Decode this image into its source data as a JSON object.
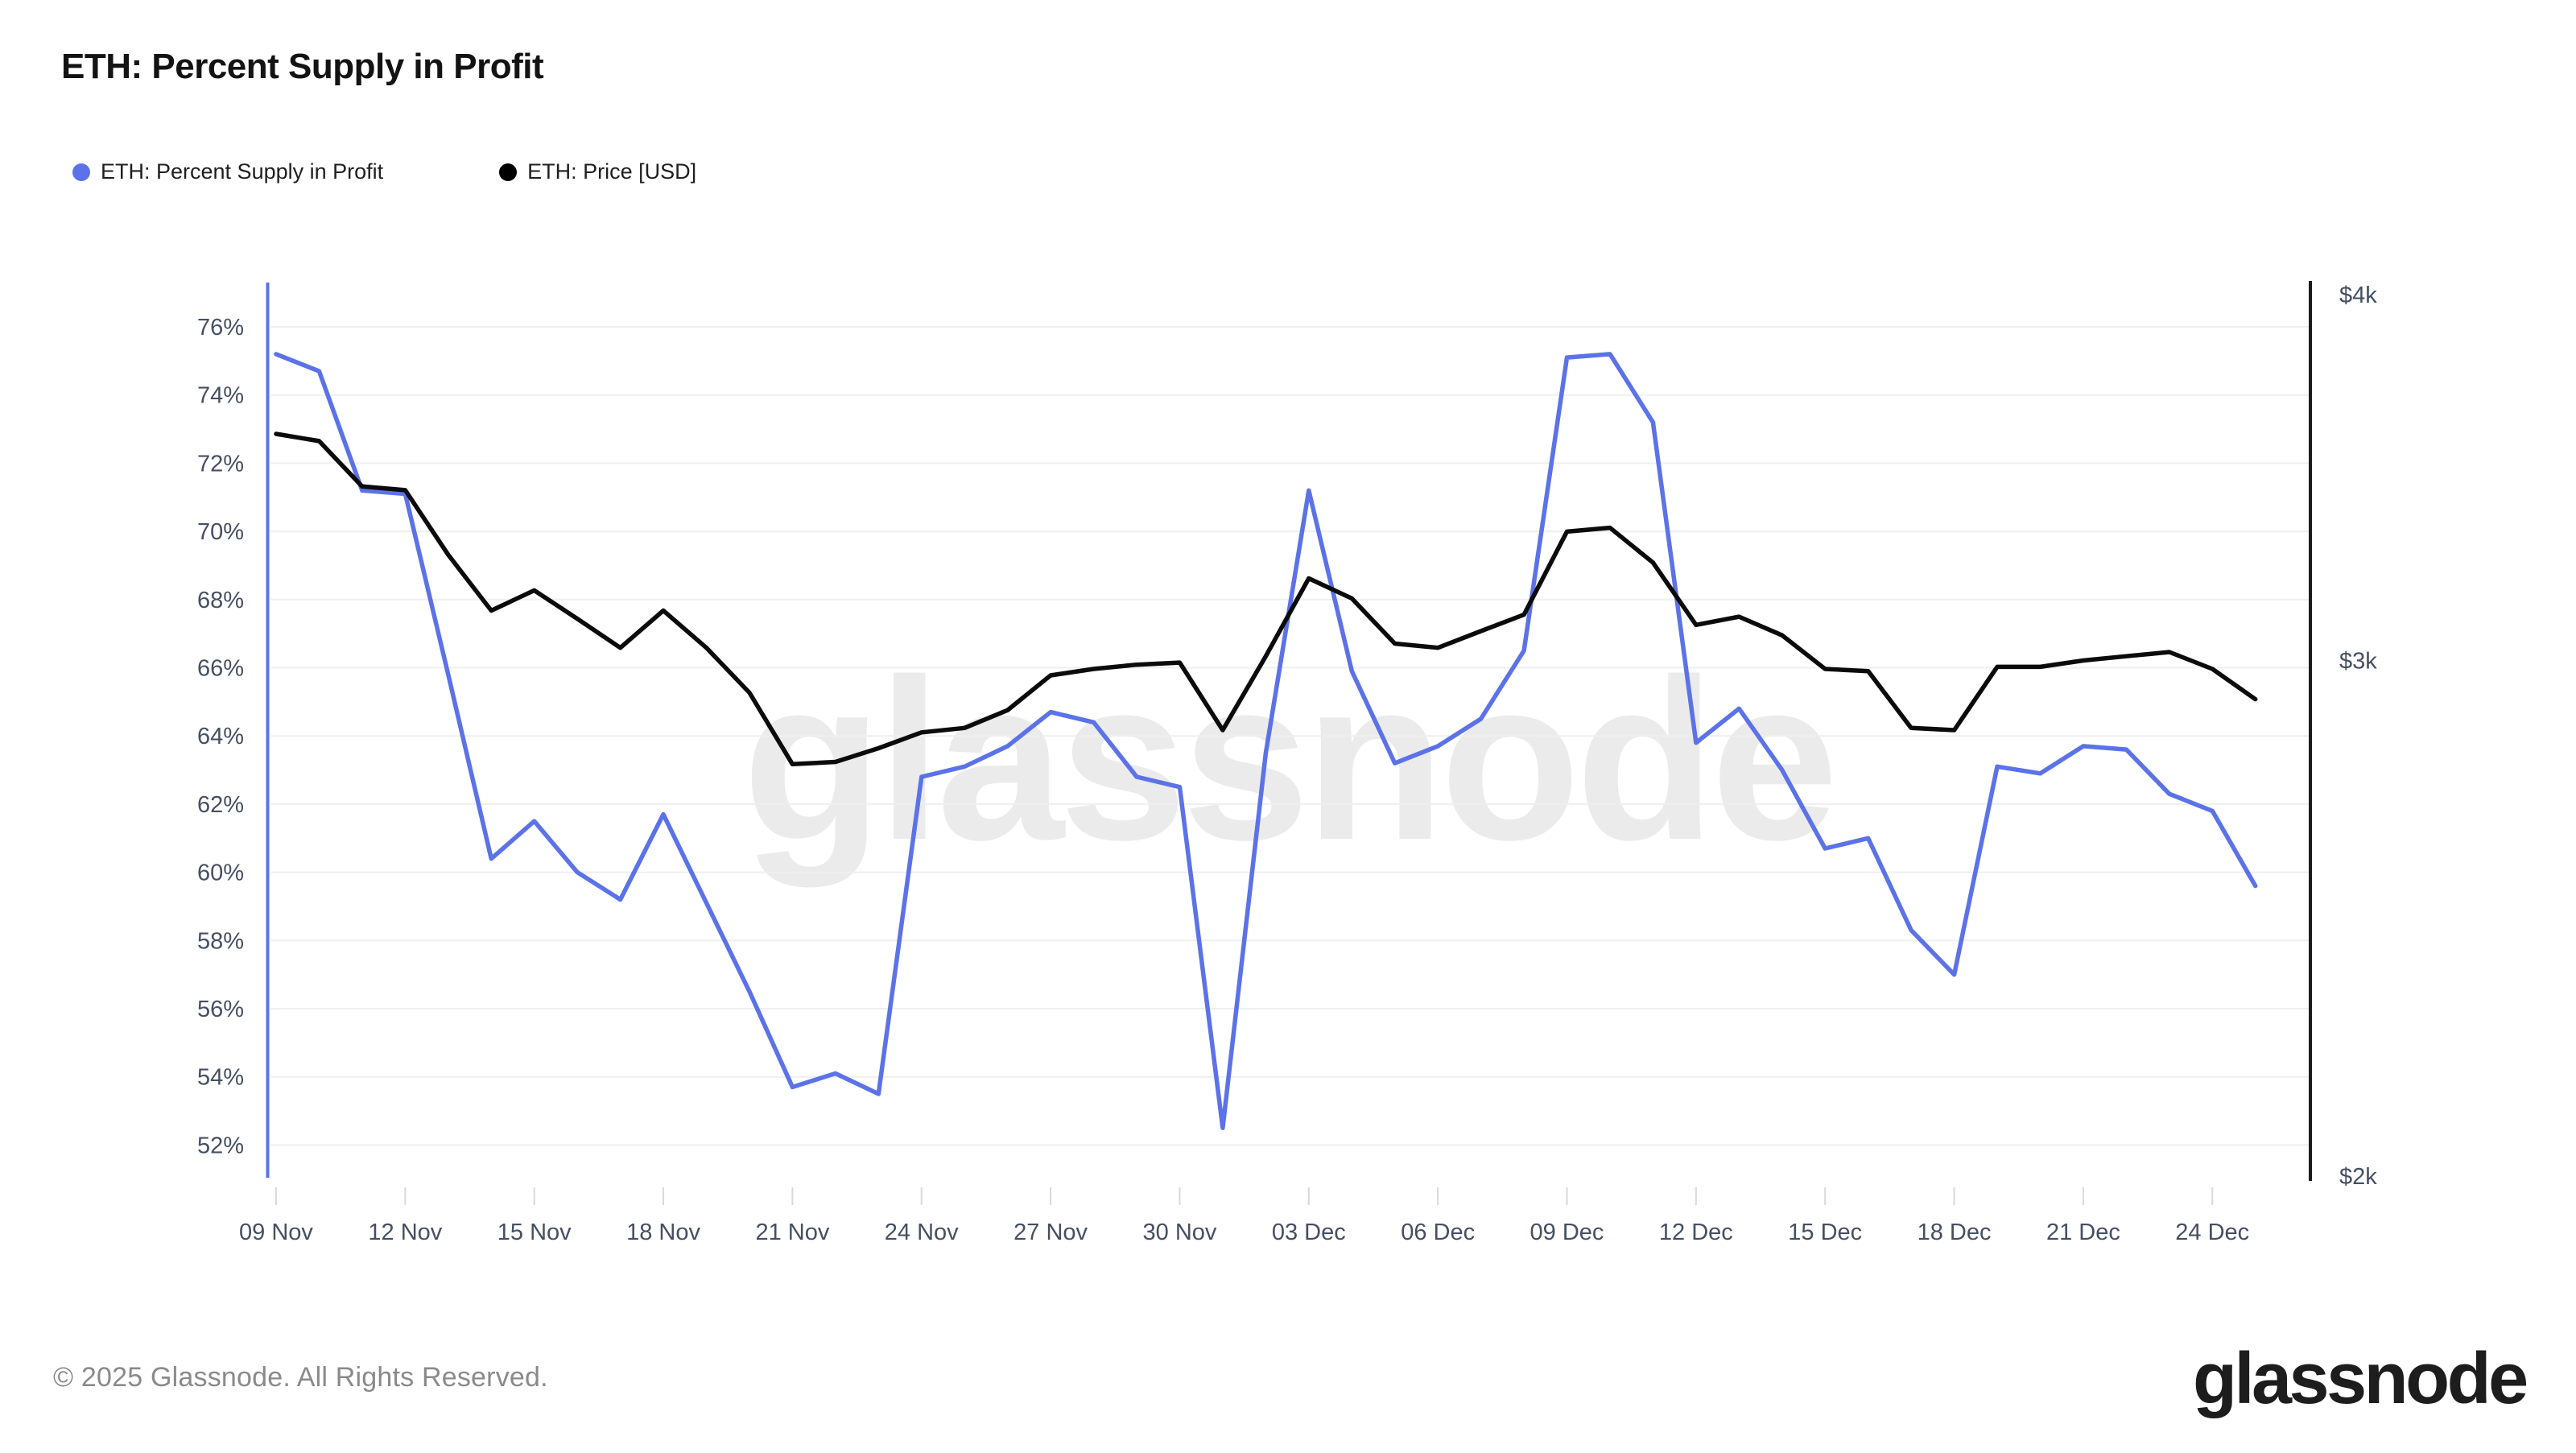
{
  "header": {
    "title": "ETH: Percent Supply in Profit"
  },
  "legend": [
    {
      "label": "ETH: Percent Supply in Profit",
      "color": "#5B72E8"
    },
    {
      "label": "ETH: Price [USD]",
      "color": "#000000"
    }
  ],
  "watermark": "glassnode",
  "footer": {
    "copyright": "© 2025 Glassnode. All Rights Reserved."
  },
  "logo_text": "glassnode",
  "style": {
    "accent_blue": "#5B72E8",
    "price_black": "#0b0b0b",
    "grid_color": "#efefef",
    "tick_text_color": "#454f63",
    "tick_mark_color": "#d9d9d9",
    "watermark_color": "#ebebeb"
  },
  "chart_data": {
    "type": "line",
    "title": "ETH: Percent Supply in Profit",
    "x": [
      "09 Nov",
      "10 Nov",
      "11 Nov",
      "12 Nov",
      "13 Nov",
      "14 Nov",
      "15 Nov",
      "16 Nov",
      "17 Nov",
      "18 Nov",
      "19 Nov",
      "20 Nov",
      "21 Nov",
      "22 Nov",
      "23 Nov",
      "24 Nov",
      "25 Nov",
      "26 Nov",
      "27 Nov",
      "28 Nov",
      "29 Nov",
      "30 Nov",
      "01 Dec",
      "02 Dec",
      "03 Dec",
      "04 Dec",
      "05 Dec",
      "06 Dec",
      "07 Dec",
      "08 Dec",
      "09 Dec",
      "10 Dec",
      "11 Dec",
      "12 Dec",
      "13 Dec",
      "14 Dec",
      "15 Dec",
      "16 Dec",
      "17 Dec",
      "18 Dec",
      "19 Dec",
      "20 Dec",
      "21 Dec",
      "22 Dec",
      "23 Dec",
      "24 Dec",
      "25 Dec"
    ],
    "xtick_labels": [
      "09 Nov",
      "12 Nov",
      "15 Nov",
      "18 Nov",
      "21 Nov",
      "24 Nov",
      "27 Nov",
      "30 Nov",
      "03 Dec",
      "06 Dec",
      "09 Dec",
      "12 Dec",
      "15 Dec",
      "18 Dec",
      "21 Dec",
      "24 Dec"
    ],
    "xtick_every_days": 3,
    "series": [
      {
        "name": "ETH: Percent Supply in Profit",
        "axis": "left",
        "unit": "%",
        "color": "#5B72E8",
        "values": [
          75.2,
          74.7,
          71.2,
          71.1,
          65.8,
          60.4,
          61.5,
          60.0,
          59.2,
          61.7,
          59.1,
          56.5,
          53.7,
          54.1,
          53.5,
          62.8,
          63.1,
          63.7,
          64.7,
          64.4,
          62.8,
          62.5,
          52.5,
          63.5,
          71.2,
          65.9,
          63.2,
          63.7,
          64.5,
          66.5,
          75.1,
          75.2,
          73.2,
          63.8,
          64.8,
          63.0,
          60.7,
          61.0,
          58.3,
          57.0,
          63.1,
          62.9,
          63.7,
          63.6,
          62.3,
          61.8,
          59.6
        ]
      },
      {
        "name": "ETH: Price [USD]",
        "axis": "right",
        "unit": "USD",
        "color": "#0b0b0b",
        "values": [
          3585,
          3565,
          3440,
          3430,
          3260,
          3120,
          3170,
          3100,
          3030,
          3120,
          3030,
          2925,
          2765,
          2770,
          2800,
          2835,
          2845,
          2885,
          2965,
          2980,
          2990,
          2995,
          2840,
          3010,
          3200,
          3150,
          3040,
          3030,
          3070,
          3110,
          3320,
          3330,
          3240,
          3085,
          3105,
          3060,
          2980,
          2975,
          2845,
          2840,
          2985,
          2985,
          3000,
          3010,
          3020,
          2980,
          2910
        ]
      }
    ],
    "yaxis_left": {
      "tick_labels": [
        "76%",
        "74%",
        "72%",
        "70%",
        "68%",
        "66%",
        "64%",
        "62%",
        "60%",
        "58%",
        "56%",
        "54%",
        "52%"
      ],
      "tick_values": [
        76,
        74,
        72,
        70,
        68,
        66,
        64,
        62,
        60,
        58,
        56,
        54,
        52
      ],
      "range": [
        51.1,
        77.3
      ],
      "grid": true
    },
    "yaxis_right": {
      "tick_labels": [
        "$4k",
        "$3k",
        "$2k"
      ],
      "tick_values": [
        4000,
        3000,
        2000
      ],
      "scale": "log",
      "range": [
        2000,
        4000
      ],
      "grid": false
    },
    "legend_position": "top-left"
  }
}
